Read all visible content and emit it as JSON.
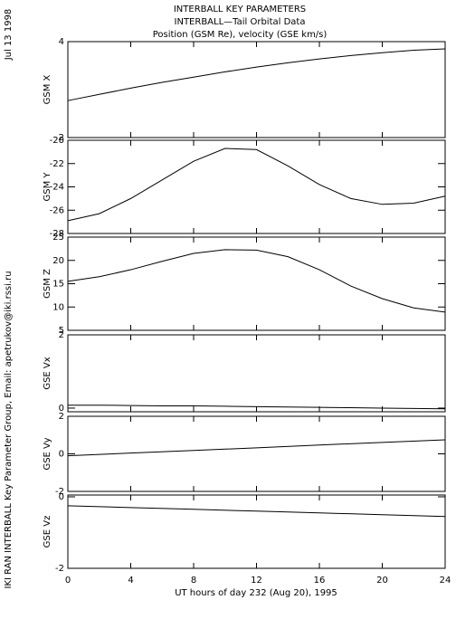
{
  "date": "Jul 13 1998",
  "credit": "IKI RAN INTERBALL Key Parameter Group, Email: apetrukov@iki.rssi.ru",
  "title": [
    "INTERBALL KEY PARAMETERS",
    "INTERBALL—Tail Orbital Data",
    "Position (GSM Re), velocity (GSE km/s)"
  ],
  "x_axis": {
    "label": "UT hours of day 232 (Aug 20), 1995",
    "xlim": [
      0,
      24
    ],
    "xticks": [
      0,
      4,
      8,
      12,
      16,
      20,
      24
    ]
  },
  "chart_data": [
    {
      "type": "line",
      "ylabel": "GSM X",
      "ylim": [
        2,
        4
      ],
      "yticks": [
        2,
        4
      ],
      "x": [
        0,
        2,
        4,
        6,
        8,
        10,
        12,
        14,
        16,
        18,
        20,
        22,
        24
      ],
      "values": [
        2.77,
        2.9,
        3.03,
        3.15,
        3.26,
        3.37,
        3.47,
        3.56,
        3.64,
        3.71,
        3.77,
        3.82,
        3.85
      ]
    },
    {
      "type": "line",
      "ylabel": "GSM Y",
      "ylim": [
        -28,
        -20
      ],
      "yticks": [
        -28,
        -26,
        -24,
        -22,
        -20
      ],
      "x": [
        0,
        2,
        4,
        6,
        8,
        10,
        12,
        14,
        16,
        18,
        20,
        22,
        24
      ],
      "values": [
        -26.9,
        -26.3,
        -25.0,
        -23.4,
        -21.8,
        -20.7,
        -20.8,
        -22.2,
        -23.8,
        -25.0,
        -25.5,
        -25.4,
        -24.8
      ]
    },
    {
      "type": "line",
      "ylabel": "GSM Z",
      "ylim": [
        5,
        25
      ],
      "yticks": [
        5,
        10,
        15,
        20,
        25
      ],
      "x": [
        0,
        2,
        4,
        6,
        8,
        10,
        12,
        14,
        16,
        18,
        20,
        22,
        24
      ],
      "values": [
        15.5,
        16.5,
        18.0,
        19.8,
        21.5,
        22.3,
        22.2,
        20.8,
        18.0,
        14.5,
        11.8,
        9.8,
        8.9
      ]
    },
    {
      "type": "line",
      "ylabel": "GSE Vx",
      "ylim": [
        -0.1,
        2
      ],
      "yticks": [
        0,
        2
      ],
      "x": [
        0,
        2,
        4,
        6,
        8,
        10,
        12,
        14,
        16,
        18,
        20,
        22,
        24
      ],
      "values": [
        0.08,
        0.08,
        0.07,
        0.06,
        0.06,
        0.05,
        0.04,
        0.03,
        0.02,
        0.01,
        0.0,
        -0.01,
        -0.02
      ]
    },
    {
      "type": "line",
      "ylabel": "GSE Vy",
      "ylim": [
        -2,
        2
      ],
      "yticks": [
        -2,
        0,
        2
      ],
      "x": [
        0,
        4,
        8,
        12,
        16,
        20,
        24
      ],
      "values": [
        -0.1,
        0.04,
        0.18,
        0.32,
        0.47,
        0.61,
        0.75
      ]
    },
    {
      "type": "line",
      "ylabel": "GSE Vz",
      "ylim": [
        -2,
        0.05
      ],
      "yticks": [
        -2,
        0
      ],
      "x": [
        0,
        4,
        8,
        12,
        16,
        20,
        24
      ],
      "values": [
        -0.25,
        -0.3,
        -0.35,
        -0.4,
        -0.45,
        -0.5,
        -0.55
      ]
    }
  ]
}
